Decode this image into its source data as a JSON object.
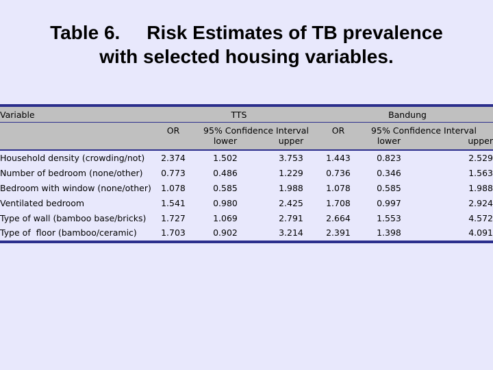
{
  "title": {
    "line1": "Table 6.     Risk Estimates of TB prevalence",
    "line2": "with selected housing variables."
  },
  "table": {
    "header": {
      "variable": "Variable",
      "group1": "TTS",
      "group2": "Bandung",
      "or": "OR",
      "ci": "95% Confidence Interval",
      "lower": "lower",
      "upper": "upper"
    },
    "rows": [
      {
        "variable": "Household density (crowding/not)",
        "tts_or": "2.374",
        "tts_lower": "1.502",
        "tts_upper": "3.753",
        "bdg_or": "1.443",
        "bdg_lower": "0.823",
        "bdg_upper": "2.529"
      },
      {
        "variable": "Number of bedroom (none/other)",
        "tts_or": "0.773",
        "tts_lower": "0.486",
        "tts_upper": "1.229",
        "bdg_or": "0.736",
        "bdg_lower": "0.346",
        "bdg_upper": "1.563"
      },
      {
        "variable": "Bedroom with window (none/other)",
        "tts_or": "1.078",
        "tts_lower": "0.585",
        "tts_upper": "1.988",
        "bdg_or": "1.078",
        "bdg_lower": "0.585",
        "bdg_upper": "1.988"
      },
      {
        "variable": "Ventilated bedroom",
        "tts_or": "1.541",
        "tts_lower": "0.980",
        "tts_upper": "2.425",
        "bdg_or": "1.708",
        "bdg_lower": "0.997",
        "bdg_upper": "2.924"
      },
      {
        "variable": "Type of wall (bamboo base/bricks)",
        "tts_or": "1.727",
        "tts_lower": "1.069",
        "tts_upper": "2.791",
        "bdg_or": "2.664",
        "bdg_lower": "1.553",
        "bdg_upper": "4.572"
      },
      {
        "variable": "Type of  floor (bamboo/ceramic)",
        "tts_or": "1.703",
        "tts_lower": "0.902",
        "tts_upper": "3.214",
        "bdg_or": "2.391",
        "bdg_lower": "1.398",
        "bdg_upper": "4.091"
      }
    ]
  }
}
